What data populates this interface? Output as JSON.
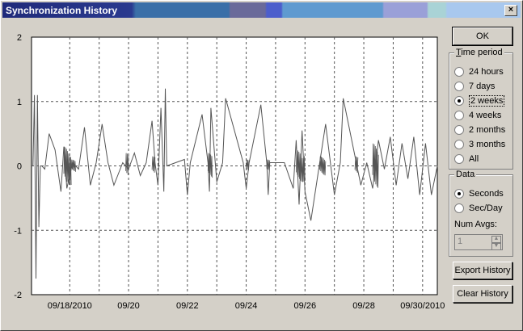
{
  "window": {
    "title": "Synchronization History",
    "close_glyph": "×"
  },
  "chart": {
    "y_ticks": [
      "2",
      "1",
      "0",
      "-1",
      "-2"
    ],
    "x_ticks": [
      "09/18/2010",
      "09/20",
      "09/22",
      "09/24",
      "09/26",
      "09/28",
      "09/30/2010"
    ]
  },
  "chart_data": {
    "type": "line",
    "x_tick_labels": [
      "09/18/2010",
      "09/20",
      "09/22",
      "09/24",
      "09/26",
      "09/28",
      "09/30/2010"
    ],
    "y_tick_labels": [
      "2",
      "1",
      "0",
      "-1",
      "-2"
    ],
    "ylim": [
      -2,
      2
    ],
    "xlim_days_from_sep17": [
      0,
      13.8
    ],
    "grid": true,
    "series": [
      {
        "x": [
          0.05,
          0.1,
          0.15,
          0.2,
          0.25,
          0.3,
          0.35,
          0.45,
          0.6,
          0.8,
          1.0,
          1.1,
          1.2,
          1.4,
          1.6,
          1.8,
          2.0,
          2.2,
          2.4,
          2.6,
          2.8,
          3.1,
          3.3,
          3.5,
          3.7,
          3.9,
          4.1,
          4.2,
          4.3,
          4.4,
          4.5,
          4.55,
          4.6,
          5.2,
          5.3,
          5.4,
          5.8,
          6.0,
          6.05,
          6.1,
          6.3,
          6.5,
          6.6,
          7.2,
          7.3,
          7.4,
          7.8,
          8.0,
          8.05,
          8.1,
          8.6,
          8.9,
          9.0,
          9.1,
          9.2,
          9.3,
          9.5,
          9.8,
          10.0,
          10.3,
          10.5,
          10.6,
          11.2,
          11.4,
          11.6,
          11.8,
          12.0,
          12.2,
          12.4,
          12.6,
          12.8,
          13.0,
          13.2,
          13.4,
          13.6,
          13.8
        ],
        "y": [
          0,
          1.1,
          -1.75,
          1.1,
          -0.95,
          0.0,
          0.0,
          -0.05,
          0.5,
          0.25,
          -0.4,
          0.3,
          -0.35,
          0.05,
          -0.05,
          0.6,
          -0.3,
          0.05,
          0.65,
          0.05,
          -0.3,
          0.05,
          -0.05,
          0.2,
          -0.15,
          0.05,
          0.7,
          0.05,
          -0.3,
          0.9,
          -0.4,
          1.2,
          0.0,
          0.1,
          -0.45,
          0.05,
          0.8,
          0.05,
          -0.4,
          0.9,
          -0.25,
          0.05,
          1.05,
          0.05,
          -0.35,
          0.05,
          0.95,
          0.05,
          -0.45,
          0.05,
          0.05,
          -0.35,
          0.4,
          -0.6,
          0.55,
          -0.4,
          -0.85,
          0.05,
          0.65,
          -0.45,
          0.05,
          1.05,
          -0.3,
          0.05,
          -0.35,
          0.4,
          -0.05,
          0.45,
          -0.3,
          0.35,
          -0.2,
          0.45,
          -0.45,
          0.35,
          -0.45,
          0.0
        ]
      }
    ]
  },
  "buttons": {
    "ok": "OK",
    "export": "Export History",
    "clear": "Clear History"
  },
  "time_period": {
    "label": "Time period",
    "options": [
      "24 hours",
      "7 days",
      "2 weeks",
      "4 weeks",
      "2 months",
      "3 months",
      "All"
    ],
    "selected": "2 weeks"
  },
  "data_group": {
    "label": "Data",
    "options": [
      "Seconds",
      "Sec/Day"
    ],
    "selected": "Seconds",
    "num_avgs_label": "Num Avgs:",
    "num_avgs_value": "1"
  }
}
